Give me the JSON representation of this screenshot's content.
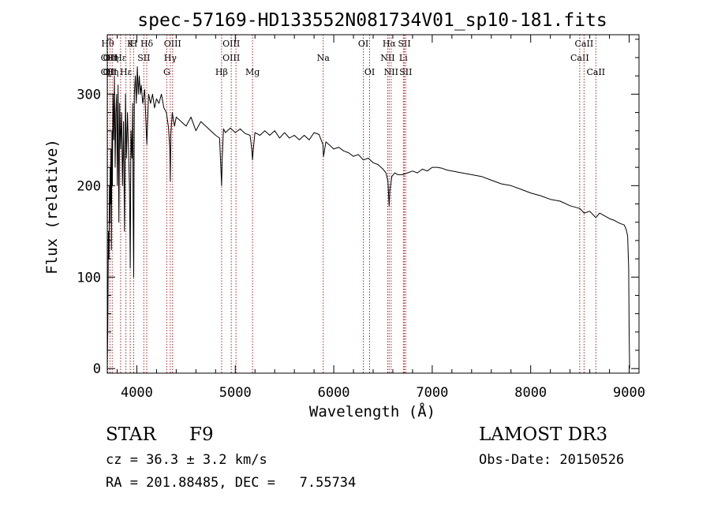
{
  "chart_data": {
    "type": "line",
    "title": "spec-57169-HD133552N081734V01_sp10-181.fits",
    "xlabel": "Wavelength (Å)",
    "ylabel": "Flux (relative)",
    "xlim": [
      3700,
      9100
    ],
    "ylim": [
      -5,
      365
    ],
    "grid": false,
    "x_ticks": [
      {
        "value": 4000,
        "label": "4000"
      },
      {
        "value": 5000,
        "label": "5000"
      },
      {
        "value": 6000,
        "label": "6000"
      },
      {
        "value": 7000,
        "label": "7000"
      },
      {
        "value": 8000,
        "label": "8000"
      },
      {
        "value": 9000,
        "label": "9000"
      }
    ],
    "y_ticks": [
      {
        "value": 0,
        "label": "0"
      },
      {
        "value": 100,
        "label": "100"
      },
      {
        "value": 200,
        "label": "200"
      },
      {
        "value": 300,
        "label": "300"
      }
    ],
    "series": [
      {
        "name": "spectrum",
        "color": "#000000",
        "x": [
          3700,
          3705,
          3712,
          3718,
          3722,
          3726,
          3730,
          3734,
          3738,
          3742,
          3747,
          3752,
          3758,
          3765,
          3772,
          3780,
          3787,
          3795,
          3802,
          3810,
          3818,
          3826,
          3835,
          3845,
          3855,
          3865,
          3875,
          3885,
          3890,
          3895,
          3905,
          3915,
          3925,
          3933,
          3940,
          3950,
          3958,
          3962,
          3968,
          3975,
          3985,
          3995,
          4005,
          4015,
          4025,
          4035,
          4045,
          4060,
          4080,
          4101,
          4120,
          4140,
          4160,
          4180,
          4200,
          4225,
          4250,
          4275,
          4300,
          4320,
          4335,
          4340,
          4345,
          4360,
          4383,
          4400,
          4450,
          4500,
          4550,
          4600,
          4650,
          4700,
          4750,
          4800,
          4840,
          4855,
          4861,
          4867,
          4880,
          4900,
          4950,
          5000,
          5050,
          5100,
          5150,
          5167,
          5175,
          5183,
          5200,
          5250,
          5300,
          5350,
          5400,
          5450,
          5500,
          5550,
          5600,
          5650,
          5700,
          5750,
          5800,
          5850,
          5890,
          5896,
          5920,
          5950,
          6000,
          6050,
          6100,
          6150,
          6200,
          6250,
          6300,
          6350,
          6400,
          6450,
          6500,
          6530,
          6550,
          6563,
          6570,
          6590,
          6620,
          6650,
          6700,
          6750,
          6800,
          6850,
          6900,
          6950,
          7000,
          7050,
          7100,
          7150,
          7200,
          7300,
          7400,
          7500,
          7600,
          7700,
          7800,
          7900,
          8000,
          8100,
          8200,
          8300,
          8400,
          8500,
          8542,
          8600,
          8662,
          8700,
          8750,
          8800,
          8850,
          8900,
          8950,
          8970,
          8985,
          8995,
          9000,
          9005
        ],
        "y": [
          5,
          40,
          150,
          120,
          200,
          160,
          220,
          180,
          240,
          130,
          260,
          200,
          300,
          250,
          320,
          220,
          280,
          300,
          200,
          310,
          160,
          290,
          240,
          280,
          200,
          270,
          150,
          300,
          260,
          230,
          280,
          240,
          200,
          110,
          260,
          230,
          290,
          180,
          100,
          300,
          320,
          290,
          330,
          300,
          320,
          300,
          310,
          290,
          305,
          245,
          300,
          290,
          300,
          285,
          295,
          290,
          300,
          285,
          280,
          265,
          240,
          205,
          255,
          280,
          265,
          275,
          270,
          265,
          275,
          260,
          270,
          265,
          260,
          255,
          252,
          215,
          200,
          230,
          262,
          258,
          263,
          258,
          262,
          257,
          255,
          240,
          228,
          240,
          258,
          255,
          260,
          255,
          260,
          252,
          258,
          252,
          255,
          250,
          255,
          250,
          258,
          256,
          245,
          232,
          248,
          245,
          240,
          242,
          238,
          236,
          232,
          234,
          228,
          230,
          225,
          223,
          218,
          214,
          205,
          178,
          195,
          210,
          214,
          212,
          212,
          214,
          216,
          214,
          218,
          216,
          220,
          220,
          219,
          217,
          216,
          214,
          212,
          210,
          206,
          202,
          200,
          196,
          192,
          189,
          185,
          183,
          178,
          175,
          170,
          172,
          165,
          170,
          167,
          164,
          162,
          159,
          157,
          152,
          145,
          110,
          40,
          0
        ]
      }
    ],
    "line_markers": [
      {
        "wavelength": 3704,
        "labels": [
          "Hθ",
          "OII",
          "OII"
        ]
      },
      {
        "wavelength": 3727,
        "labels": [
          "",
          "OII",
          "OII"
        ]
      },
      {
        "wavelength": 3750,
        "labels": [
          "",
          "Hη",
          "Hη"
        ]
      },
      {
        "wavelength": 3835,
        "labels": [
          "",
          "Hε",
          ""
        ]
      },
      {
        "wavelength": 3889,
        "labels": [
          "",
          "",
          "Hε"
        ]
      },
      {
        "wavelength": 3933,
        "labels": [
          "K",
          "",
          ""
        ]
      },
      {
        "wavelength": 3968,
        "labels": [
          "H",
          "",
          ""
        ]
      },
      {
        "wavelength": 4071,
        "labels": [
          "",
          "SII",
          ""
        ]
      },
      {
        "wavelength": 4101,
        "labels": [
          "Hδ",
          "",
          ""
        ]
      },
      {
        "wavelength": 4304,
        "labels": [
          "",
          "",
          "G"
        ]
      },
      {
        "wavelength": 4340,
        "labels": [
          "",
          "Hγ",
          ""
        ]
      },
      {
        "wavelength": 4363,
        "labels": [
          "OIII",
          "",
          ""
        ]
      },
      {
        "wavelength": 4861,
        "labels": [
          "",
          "",
          "Hβ"
        ]
      },
      {
        "wavelength": 4959,
        "labels": [
          "OIII",
          "OIII",
          ""
        ]
      },
      {
        "wavelength": 5007,
        "labels": [
          "",
          "",
          ""
        ]
      },
      {
        "wavelength": 5175,
        "labels": [
          "",
          "",
          "Mg"
        ]
      },
      {
        "wavelength": 5893,
        "labels": [
          "",
          "Na",
          ""
        ]
      },
      {
        "wavelength": 6300,
        "labels": [
          "OI",
          "",
          ""
        ]
      },
      {
        "wavelength": 6364,
        "labels": [
          "",
          "",
          "OI"
        ]
      },
      {
        "wavelength": 6548,
        "labels": [
          "",
          "NII",
          ""
        ]
      },
      {
        "wavelength": 6563,
        "labels": [
          "Hα",
          "",
          ""
        ]
      },
      {
        "wavelength": 6583,
        "labels": [
          "",
          "",
          "NII"
        ]
      },
      {
        "wavelength": 6707,
        "labels": [
          "",
          "Li",
          ""
        ]
      },
      {
        "wavelength": 6717,
        "labels": [
          "SII",
          "",
          ""
        ]
      },
      {
        "wavelength": 6731,
        "labels": [
          "",
          "",
          "SII"
        ]
      },
      {
        "wavelength": 8498,
        "labels": [
          "",
          "CaII",
          ""
        ]
      },
      {
        "wavelength": 8542,
        "labels": [
          "CaII",
          "",
          ""
        ]
      },
      {
        "wavelength": 8662,
        "labels": [
          "",
          "",
          "CaII"
        ]
      }
    ],
    "marker_color": "#b22222"
  },
  "info": {
    "object_class": "STAR",
    "subclass": "F9",
    "survey": "LAMOST DR3",
    "cz_line": "cz = 36.3 ± 3.2 km/s",
    "obs_date": "Obs-Date: 20150526",
    "radec_line": "RA = 201.88485, DEC =   7.55734"
  }
}
